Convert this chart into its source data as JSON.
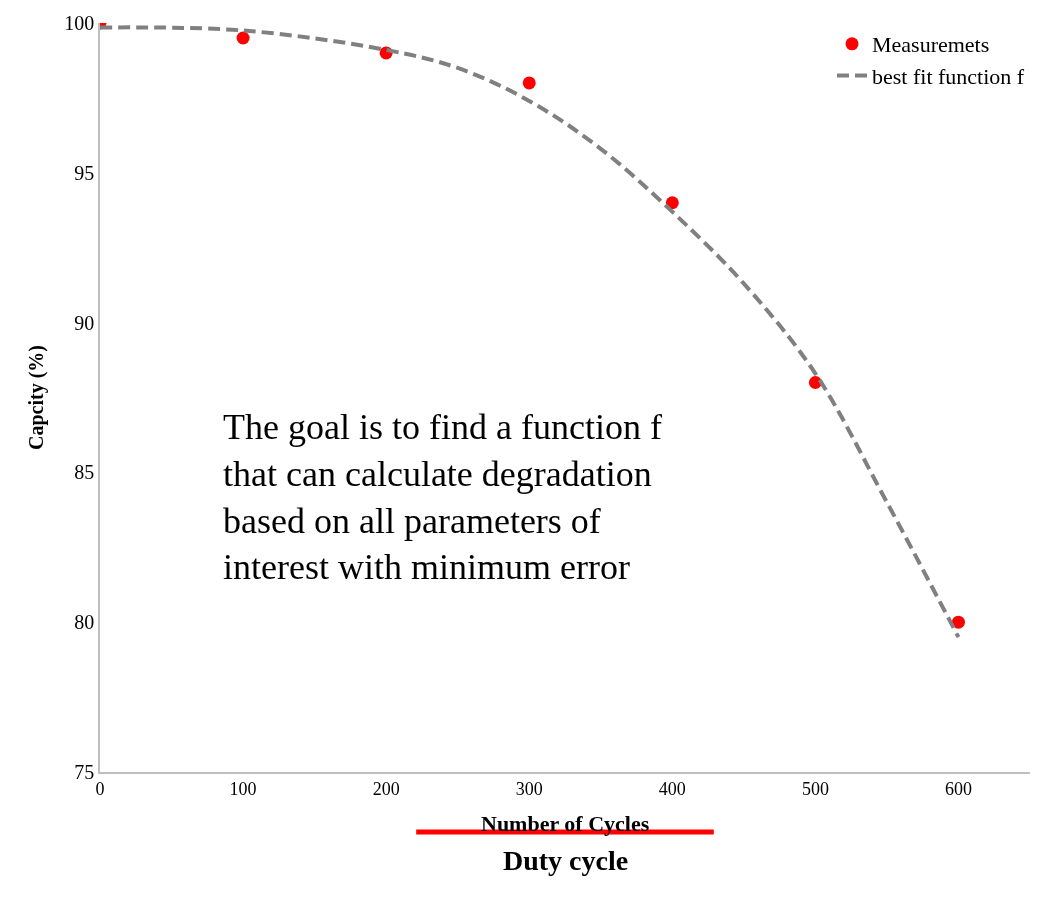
{
  "chart_data": {
    "type": "scatter",
    "ylabel": "Capcity (%)",
    "xlabel": "Duty cycle",
    "xlim": [
      0,
      650
    ],
    "xticks": [
      0,
      100,
      200,
      300,
      400,
      500,
      600
    ],
    "ylim": [
      75,
      100
    ],
    "yticks": [
      75,
      80,
      85,
      90,
      95,
      100
    ],
    "legend": "top right",
    "series": [
      {
        "name": "Measuremets",
        "marker": "circle",
        "color": "#ff0000",
        "x": [
          0,
          100,
          200,
          300,
          400,
          500,
          600
        ],
        "values": [
          100,
          99.5,
          99,
          98,
          94,
          88,
          80
        ]
      },
      {
        "name": "best fit function f",
        "type": "line",
        "marker": "none",
        "line_style": "dashed",
        "color": "#808080",
        "x": [
          0,
          100,
          200,
          250,
          300,
          350,
          400,
          450,
          500,
          550,
          600
        ],
        "values": [
          99.85,
          99.75,
          99.1,
          98.5,
          97.4,
          95.8,
          93.7,
          91.3,
          88.3,
          84,
          79.5
        ]
      }
    ],
    "annotations": [
      "The goal is to find a function f that can calculate degradation based on all parameters of interest with minimum error",
      "Number of Cycles"
    ]
  }
}
